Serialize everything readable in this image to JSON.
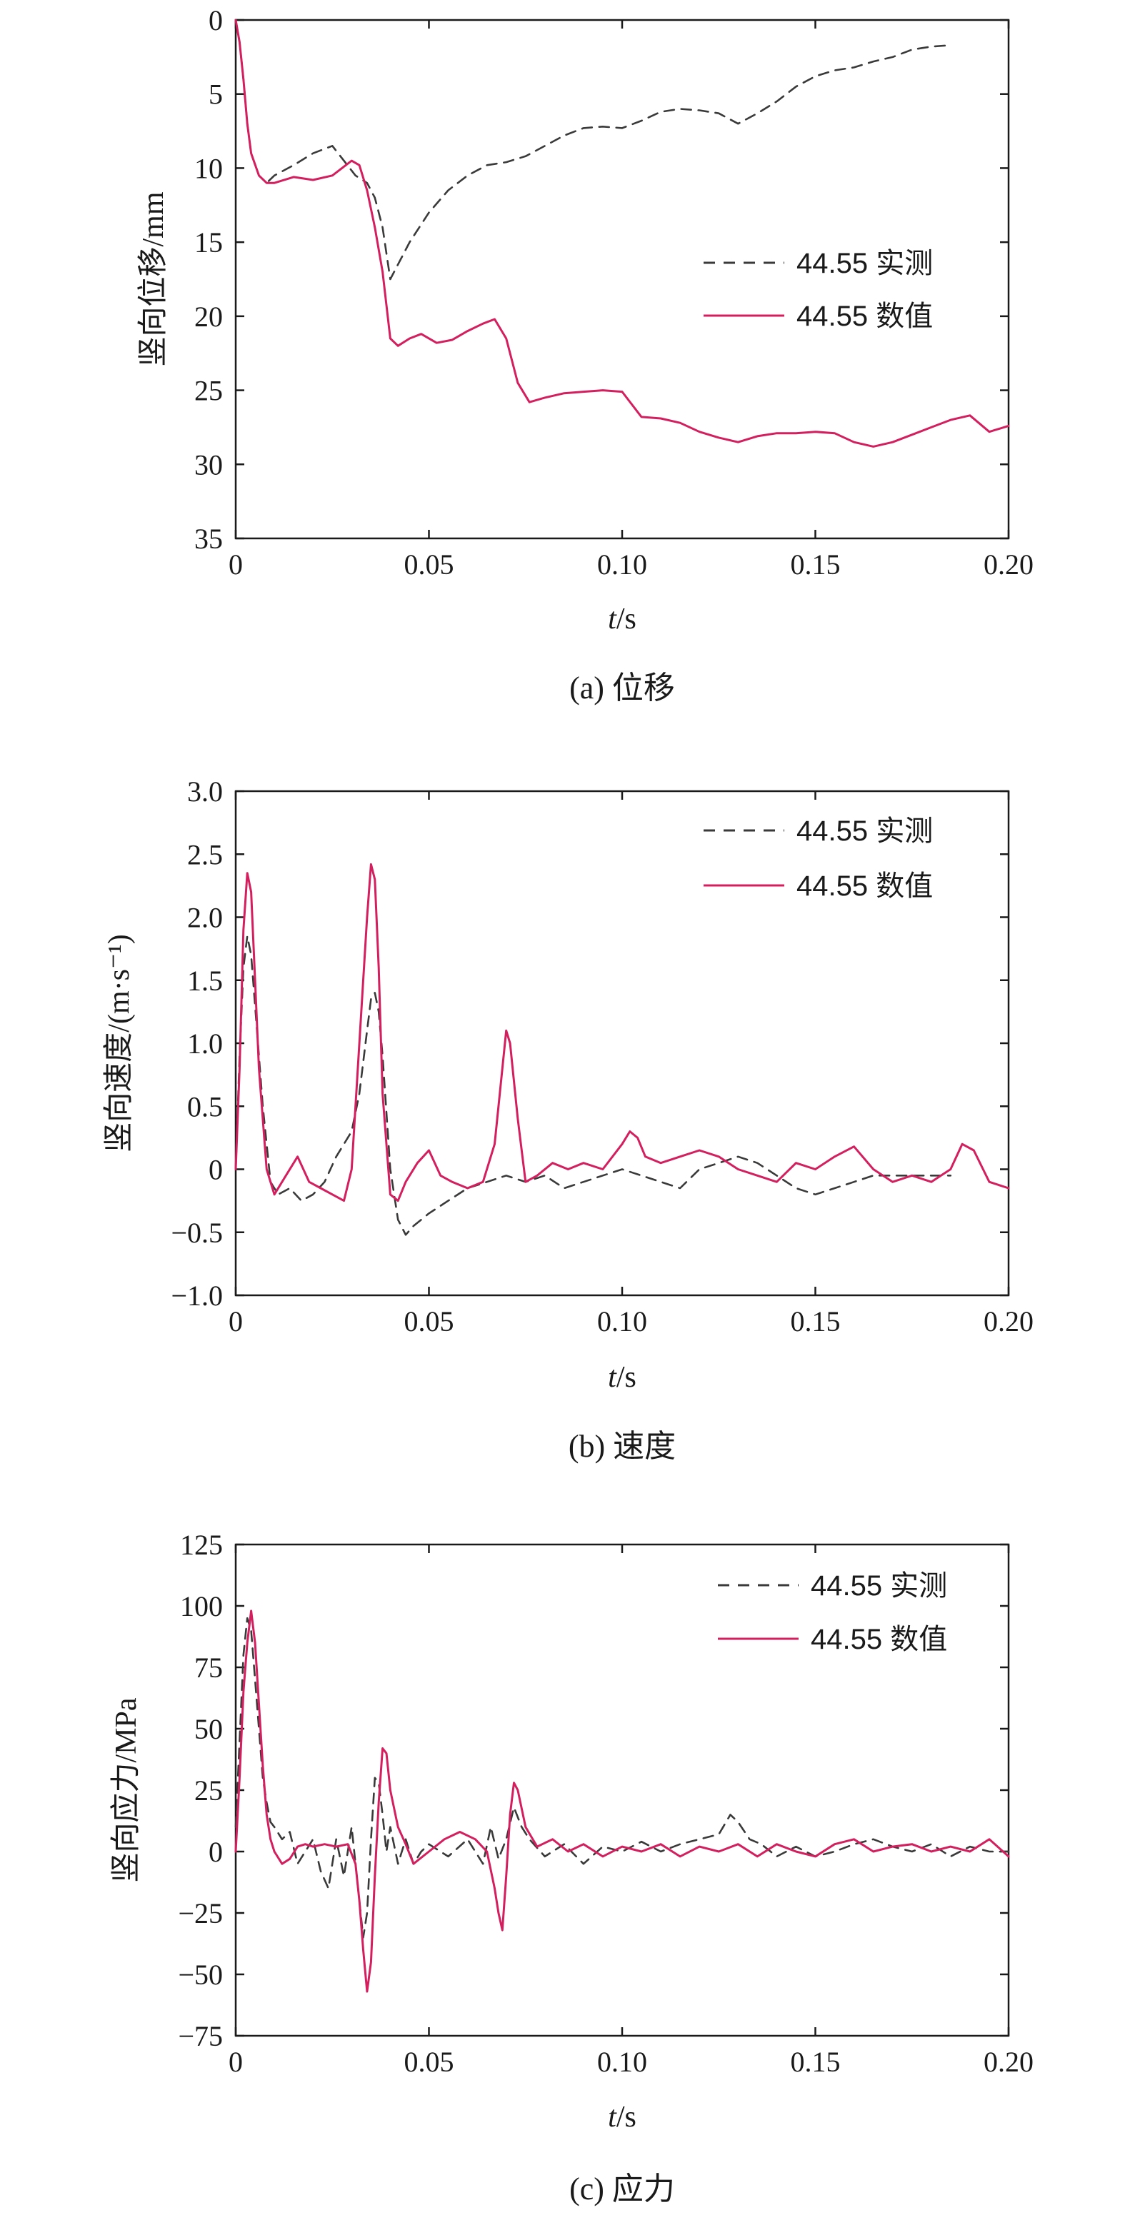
{
  "colors": {
    "measured": "#3a3a3a",
    "numerical": "#d41f5e",
    "axis": "#1a1a1a"
  },
  "chart_data": [
    {
      "id": "a",
      "type": "line",
      "caption": "(a) 位移",
      "xlabel_italic": "t",
      "xlabel_unit": "/s",
      "ylabel": "竖向位移/mm",
      "xlim": [
        0,
        0.2
      ],
      "ylim": [
        0,
        35
      ],
      "y_inverted": true,
      "xticks": [
        0,
        0.05,
        0.1,
        0.15,
        0.2
      ],
      "xtick_labels": [
        "0",
        "0.05",
        "0.10",
        "0.15",
        "0.20"
      ],
      "yticks": [
        0,
        5,
        10,
        15,
        20,
        25,
        30,
        35
      ],
      "ytick_labels": [
        "0",
        "5",
        "10",
        "15",
        "20",
        "25",
        "30",
        "35"
      ],
      "legend_position": "right",
      "series": [
        {
          "name": "44.55 实测",
          "style": "dashed",
          "x": [
            0,
            0.001,
            0.002,
            0.003,
            0.004,
            0.006,
            0.008,
            0.01,
            0.015,
            0.02,
            0.025,
            0.028,
            0.031,
            0.034,
            0.036,
            0.038,
            0.04,
            0.042,
            0.045,
            0.05,
            0.055,
            0.06,
            0.065,
            0.07,
            0.075,
            0.08,
            0.085,
            0.09,
            0.095,
            0.1,
            0.105,
            0.11,
            0.115,
            0.12,
            0.125,
            0.13,
            0.135,
            0.14,
            0.145,
            0.15,
            0.155,
            0.16,
            0.165,
            0.17,
            0.175,
            0.18,
            0.185
          ],
          "y": [
            0,
            1.5,
            4,
            7,
            9,
            10.5,
            11,
            10.5,
            9.8,
            9,
            8.5,
            9.5,
            10.5,
            11,
            12,
            14,
            17.5,
            16.5,
            15,
            13,
            11.5,
            10.5,
            9.8,
            9.6,
            9.2,
            8.5,
            7.8,
            7.3,
            7.2,
            7.3,
            6.8,
            6.2,
            6,
            6.1,
            6.3,
            7,
            6.3,
            5.5,
            4.5,
            3.8,
            3.4,
            3.2,
            2.8,
            2.5,
            2.0,
            1.8,
            1.7
          ]
        },
        {
          "name": "44.55 数值",
          "style": "solid",
          "x": [
            0,
            0.001,
            0.002,
            0.003,
            0.004,
            0.006,
            0.008,
            0.01,
            0.015,
            0.02,
            0.025,
            0.03,
            0.032,
            0.034,
            0.036,
            0.038,
            0.04,
            0.042,
            0.045,
            0.048,
            0.052,
            0.056,
            0.06,
            0.064,
            0.067,
            0.07,
            0.073,
            0.076,
            0.08,
            0.085,
            0.09,
            0.095,
            0.1,
            0.105,
            0.11,
            0.115,
            0.12,
            0.125,
            0.13,
            0.135,
            0.14,
            0.145,
            0.15,
            0.155,
            0.16,
            0.165,
            0.17,
            0.175,
            0.18,
            0.185,
            0.19,
            0.195,
            0.2
          ],
          "y": [
            0,
            1.5,
            4,
            7,
            9,
            10.5,
            11,
            11,
            10.6,
            10.8,
            10.5,
            9.5,
            9.8,
            11.5,
            14,
            17,
            21.5,
            22,
            21.5,
            21.2,
            21.8,
            21.6,
            21,
            20.5,
            20.2,
            21.5,
            24.5,
            25.8,
            25.5,
            25.2,
            25.1,
            25,
            25.1,
            26.8,
            26.9,
            27.2,
            27.8,
            28.2,
            28.5,
            28.1,
            27.9,
            27.9,
            27.8,
            27.9,
            28.5,
            28.8,
            28.5,
            28,
            27.5,
            27,
            26.7,
            27.8,
            27.4
          ]
        }
      ]
    },
    {
      "id": "b",
      "type": "line",
      "caption": "(b) 速度",
      "xlabel_italic": "t",
      "xlabel_unit": "/s",
      "ylabel": "竖向速度/(m·s⁻¹)",
      "xlim": [
        0,
        0.2
      ],
      "ylim": [
        -1.0,
        3.0
      ],
      "y_inverted": false,
      "xticks": [
        0,
        0.05,
        0.1,
        0.15,
        0.2
      ],
      "xtick_labels": [
        "0",
        "0.05",
        "0.10",
        "0.15",
        "0.20"
      ],
      "yticks": [
        -1.0,
        -0.5,
        0,
        0.5,
        1.0,
        1.5,
        2.0,
        2.5,
        3.0
      ],
      "ytick_labels": [
        "−1.0",
        "−0.5",
        "0",
        "0.5",
        "1.0",
        "1.5",
        "2.0",
        "2.5",
        "3.0"
      ],
      "legend_position": "top-right",
      "series": [
        {
          "name": "44.55 实测",
          "style": "dashed",
          "x": [
            0,
            0.001,
            0.002,
            0.003,
            0.004,
            0.005,
            0.007,
            0.009,
            0.011,
            0.014,
            0.017,
            0.02,
            0.023,
            0.026,
            0.028,
            0.03,
            0.032,
            0.034,
            0.035,
            0.036,
            0.037,
            0.038,
            0.04,
            0.042,
            0.044,
            0.046,
            0.05,
            0.055,
            0.06,
            0.065,
            0.07,
            0.075,
            0.08,
            0.085,
            0.09,
            0.095,
            0.1,
            0.105,
            0.11,
            0.115,
            0.12,
            0.125,
            0.13,
            0.135,
            0.14,
            0.145,
            0.15,
            0.155,
            0.16,
            0.165,
            0.17,
            0.175,
            0.18,
            0.185
          ],
          "y": [
            0,
            0.9,
            1.6,
            1.85,
            1.7,
            1.3,
            0.5,
            -0.1,
            -0.2,
            -0.15,
            -0.25,
            -0.2,
            -0.1,
            0.1,
            0.2,
            0.3,
            0.6,
            1.1,
            1.35,
            1.4,
            1.25,
            0.9,
            0.0,
            -0.4,
            -0.52,
            -0.45,
            -0.35,
            -0.25,
            -0.15,
            -0.1,
            -0.05,
            -0.1,
            -0.05,
            -0.15,
            -0.1,
            -0.05,
            0.0,
            -0.05,
            -0.1,
            -0.15,
            0.0,
            0.05,
            0.1,
            0.05,
            -0.05,
            -0.15,
            -0.2,
            -0.15,
            -0.1,
            -0.05,
            -0.05,
            -0.05,
            -0.05,
            -0.05
          ]
        },
        {
          "name": "44.55 数值",
          "style": "solid",
          "x": [
            0,
            0.001,
            0.002,
            0.003,
            0.004,
            0.005,
            0.006,
            0.008,
            0.01,
            0.013,
            0.016,
            0.019,
            0.022,
            0.025,
            0.028,
            0.03,
            0.032,
            0.034,
            0.035,
            0.036,
            0.037,
            0.038,
            0.04,
            0.042,
            0.044,
            0.047,
            0.05,
            0.053,
            0.056,
            0.06,
            0.064,
            0.067,
            0.069,
            0.07,
            0.071,
            0.073,
            0.075,
            0.078,
            0.082,
            0.086,
            0.09,
            0.095,
            0.1,
            0.102,
            0.104,
            0.106,
            0.11,
            0.115,
            0.12,
            0.125,
            0.13,
            0.135,
            0.14,
            0.145,
            0.15,
            0.155,
            0.16,
            0.165,
            0.17,
            0.175,
            0.18,
            0.185,
            0.188,
            0.191,
            0.195,
            0.2
          ],
          "y": [
            0,
            0.8,
            1.9,
            2.35,
            2.2,
            1.5,
            0.8,
            0.0,
            -0.2,
            -0.05,
            0.1,
            -0.1,
            -0.15,
            -0.2,
            -0.25,
            0.0,
            1.0,
            2.0,
            2.42,
            2.3,
            1.6,
            0.6,
            -0.2,
            -0.25,
            -0.1,
            0.05,
            0.15,
            -0.05,
            -0.1,
            -0.15,
            -0.1,
            0.2,
            0.8,
            1.1,
            1.0,
            0.4,
            -0.1,
            -0.05,
            0.05,
            0.0,
            0.05,
            0.0,
            0.2,
            0.3,
            0.25,
            0.1,
            0.05,
            0.1,
            0.15,
            0.1,
            0.0,
            -0.05,
            -0.1,
            0.05,
            0.0,
            0.1,
            0.18,
            0.0,
            -0.1,
            -0.05,
            -0.1,
            0.0,
            0.2,
            0.15,
            -0.1,
            -0.15
          ]
        }
      ]
    },
    {
      "id": "c",
      "type": "line",
      "caption": "(c) 应力",
      "xlabel_italic": "t",
      "xlabel_unit": "/s",
      "ylabel": "竖向应力/MPa",
      "xlim": [
        0,
        0.2
      ],
      "ylim": [
        -75,
        125
      ],
      "y_inverted": false,
      "xticks": [
        0,
        0.05,
        0.1,
        0.15,
        0.2
      ],
      "xtick_labels": [
        "0",
        "0.05",
        "0.10",
        "0.15",
        "0.20"
      ],
      "yticks": [
        -75,
        -50,
        -25,
        0,
        25,
        50,
        75,
        100,
        125
      ],
      "ytick_labels": [
        "−75",
        "−50",
        "−25",
        "0",
        "25",
        "50",
        "75",
        "100",
        "125"
      ],
      "legend_position": "top-right",
      "series": [
        {
          "name": "44.55 实测",
          "style": "dashed",
          "x": [
            0,
            0.001,
            0.002,
            0.003,
            0.004,
            0.005,
            0.006,
            0.007,
            0.008,
            0.009,
            0.01,
            0.012,
            0.014,
            0.016,
            0.018,
            0.02,
            0.022,
            0.024,
            0.026,
            0.028,
            0.03,
            0.031,
            0.032,
            0.033,
            0.034,
            0.035,
            0.036,
            0.037,
            0.038,
            0.039,
            0.04,
            0.042,
            0.044,
            0.046,
            0.048,
            0.05,
            0.055,
            0.06,
            0.064,
            0.066,
            0.068,
            0.07,
            0.072,
            0.074,
            0.076,
            0.08,
            0.085,
            0.09,
            0.095,
            0.1,
            0.105,
            0.11,
            0.115,
            0.12,
            0.125,
            0.128,
            0.13,
            0.133,
            0.136,
            0.14,
            0.145,
            0.15,
            0.155,
            0.16,
            0.165,
            0.17,
            0.175,
            0.18,
            0.185,
            0.19,
            0.195,
            0.2
          ],
          "y": [
            10,
            45,
            80,
            95,
            90,
            70,
            50,
            30,
            20,
            12,
            10,
            5,
            8,
            -5,
            0,
            5,
            -8,
            -15,
            5,
            -10,
            10,
            -5,
            -20,
            -35,
            -25,
            5,
            30,
            28,
            15,
            0,
            10,
            -5,
            5,
            -5,
            0,
            3,
            -2,
            5,
            -5,
            10,
            -3,
            5,
            18,
            10,
            5,
            -2,
            3,
            -5,
            2,
            0,
            4,
            0,
            3,
            5,
            7,
            15,
            12,
            5,
            3,
            -2,
            2,
            -2,
            0,
            3,
            5,
            2,
            0,
            3,
            -2,
            2,
            0,
            0
          ]
        },
        {
          "name": "44.55 数值",
          "style": "solid",
          "x": [
            0,
            0.001,
            0.002,
            0.003,
            0.004,
            0.005,
            0.006,
            0.007,
            0.008,
            0.009,
            0.01,
            0.012,
            0.014,
            0.016,
            0.018,
            0.02,
            0.023,
            0.026,
            0.029,
            0.031,
            0.032,
            0.033,
            0.034,
            0.035,
            0.036,
            0.037,
            0.038,
            0.039,
            0.04,
            0.042,
            0.044,
            0.046,
            0.05,
            0.054,
            0.058,
            0.062,
            0.065,
            0.067,
            0.068,
            0.069,
            0.07,
            0.071,
            0.072,
            0.073,
            0.075,
            0.078,
            0.082,
            0.086,
            0.09,
            0.095,
            0.1,
            0.105,
            0.11,
            0.115,
            0.12,
            0.125,
            0.13,
            0.135,
            0.14,
            0.145,
            0.15,
            0.155,
            0.16,
            0.165,
            0.17,
            0.175,
            0.18,
            0.185,
            0.19,
            0.195,
            0.2
          ],
          "y": [
            0,
            30,
            65,
            85,
            98,
            85,
            60,
            35,
            15,
            5,
            0,
            -5,
            -3,
            2,
            3,
            2,
            3,
            2,
            3,
            -5,
            -20,
            -40,
            -57,
            -45,
            -10,
            20,
            42,
            40,
            25,
            10,
            3,
            -5,
            0,
            5,
            8,
            5,
            0,
            -15,
            -25,
            -32,
            -10,
            15,
            28,
            25,
            10,
            2,
            5,
            0,
            3,
            -2,
            2,
            0,
            3,
            -2,
            2,
            0,
            3,
            -2,
            3,
            0,
            -2,
            3,
            5,
            0,
            2,
            3,
            0,
            2,
            0,
            5,
            -2
          ]
        }
      ]
    }
  ]
}
